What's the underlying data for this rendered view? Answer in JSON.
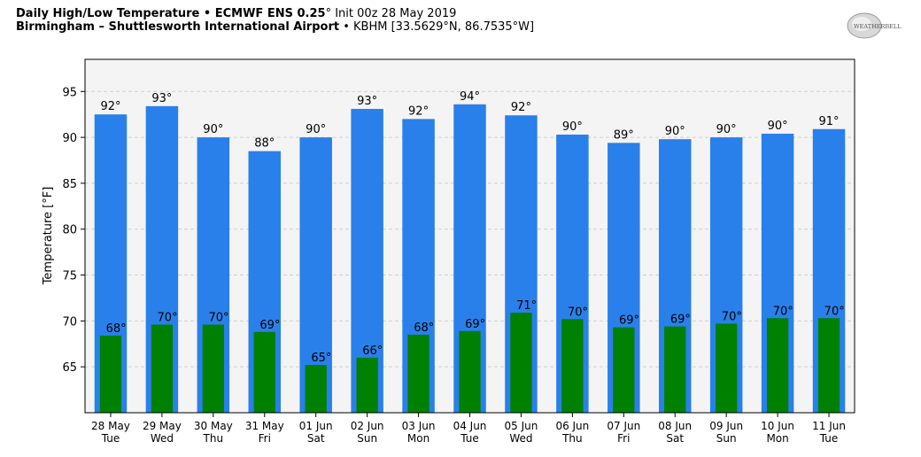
{
  "header": {
    "title_bold": "Daily High/Low Temperature • ECMWF ENS 0.25",
    "title_deg": "°",
    "title_rest": " Init 00z 28 May 2019",
    "station_bold": "Birmingham – Shuttlesworth International Airport",
    "station_rest": " • KBHM [33.5629°N, 86.7535°W]"
  },
  "logo": {
    "text": "WEATHERBELL"
  },
  "chart_data": {
    "type": "bar",
    "title": "Daily High/Low Temperature",
    "ylabel": "Temperature [°F]",
    "xlabel": "",
    "ylim": [
      60,
      98.5
    ],
    "yticks": [
      65,
      70,
      75,
      80,
      85,
      90,
      95
    ],
    "grid": true,
    "categories": [
      [
        "28 May",
        "Tue"
      ],
      [
        "29 May",
        "Wed"
      ],
      [
        "30 May",
        "Thu"
      ],
      [
        "31 May",
        "Fri"
      ],
      [
        "01 Jun",
        "Sat"
      ],
      [
        "02 Jun",
        "Sun"
      ],
      [
        "03 Jun",
        "Mon"
      ],
      [
        "04 Jun",
        "Tue"
      ],
      [
        "05 Jun",
        "Wed"
      ],
      [
        "06 Jun",
        "Thu"
      ],
      [
        "07 Jun",
        "Fri"
      ],
      [
        "08 Jun",
        "Sat"
      ],
      [
        "09 Jun",
        "Sun"
      ],
      [
        "10 Jun",
        "Mon"
      ],
      [
        "11 Jun",
        "Tue"
      ]
    ],
    "series": [
      {
        "values": [
          92.5,
          93.4,
          90.0,
          88.5,
          90.0,
          93.1,
          92.0,
          93.6,
          92.4,
          90.3,
          89.4,
          89.8,
          90.0,
          90.4,
          90.9
        ],
        "labels": [
          "92°",
          "93°",
          "90°",
          "88°",
          "90°",
          "93°",
          "92°",
          "94°",
          "92°",
          "90°",
          "89°",
          "90°",
          "90°",
          "90°",
          "91°"
        ],
        "color": "#2a80ea"
      },
      {
        "values": [
          68.4,
          69.6,
          69.6,
          68.8,
          65.2,
          66.0,
          68.5,
          68.9,
          70.9,
          70.2,
          69.3,
          69.4,
          69.7,
          70.3,
          70.3
        ],
        "labels": [
          "68°",
          "70°",
          "70°",
          "69°",
          "65°",
          "66°",
          "68°",
          "69°",
          "71°",
          "70°",
          "69°",
          "69°",
          "70°",
          "70°",
          "70°"
        ],
        "color": "#008000"
      }
    ]
  }
}
